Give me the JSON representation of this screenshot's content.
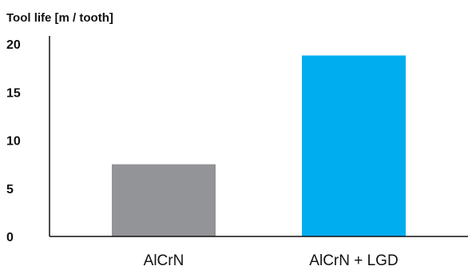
{
  "chart_data": {
    "type": "bar",
    "ylabel": "Tool life [m / tooth]",
    "categories": [
      "AlCrN",
      "AlCrN + LGD"
    ],
    "values": [
      7.5,
      18.8
    ],
    "ylim": [
      0,
      20
    ],
    "yticks": [
      "0",
      "5",
      "10",
      "15",
      "20"
    ],
    "grid": false,
    "legend": "none",
    "colors": [
      "#929497",
      "#00adee"
    ]
  }
}
